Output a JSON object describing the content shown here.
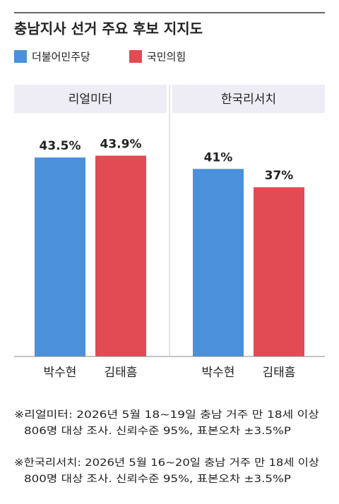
{
  "title": "충남지사 선거 주요 후보 지지도",
  "legend": [
    {
      "name": "더불어민주당",
      "color": "#4a90db"
    },
    {
      "name": "국민의힘",
      "color": "#e24b53"
    }
  ],
  "chart_data": [
    {
      "type": "bar",
      "title": "리얼미터",
      "categories": [
        "박수현",
        "김태흠"
      ],
      "values": [
        43.5,
        43.9
      ],
      "value_labels": [
        "43.5%",
        "43.9%"
      ],
      "ylim": [
        0,
        50
      ]
    },
    {
      "type": "bar",
      "title": "한국리서치",
      "categories": [
        "박수현",
        "김태흠"
      ],
      "values": [
        41,
        37
      ],
      "value_labels": [
        "41%",
        "37%"
      ],
      "ylim": [
        0,
        50
      ]
    }
  ],
  "notes": [
    [
      "※리얼미터: 2026년 5월 18~19일 충남 거주 만 18세 이상",
      "806명 대상 조사. 신뢰수준 95%, 표본오차 ±3.5%P"
    ],
    [
      "※한국리서치: 2026년 5월 16~20일 충남 거주 만 18세 이상",
      "800명 대상 조사. 신뢰수준 95%, 표본오차 ±3.5%P"
    ]
  ]
}
